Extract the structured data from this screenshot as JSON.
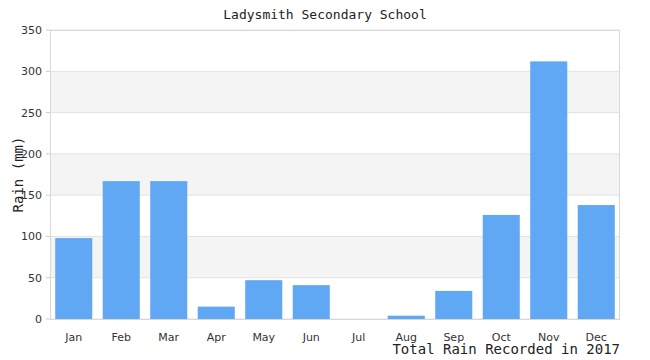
{
  "chart_data": {
    "type": "bar",
    "title": "Ladysmith Secondary School",
    "ylabel": "Rain (mm)",
    "xlabel": "Total Rain Recorded in 2017",
    "categories": [
      "Jan",
      "Feb",
      "Mar",
      "Apr",
      "May",
      "Jun",
      "Jul",
      "Aug",
      "Sep",
      "Oct",
      "Nov",
      "Dec"
    ],
    "values": [
      98,
      167,
      167,
      15,
      47,
      41,
      0,
      4,
      34,
      126,
      312,
      138
    ],
    "color": "#60a8f4",
    "ylim": [
      0,
      350
    ],
    "yticks": [
      0,
      50,
      100,
      150,
      200,
      250,
      300,
      350
    ],
    "grid": true
  }
}
